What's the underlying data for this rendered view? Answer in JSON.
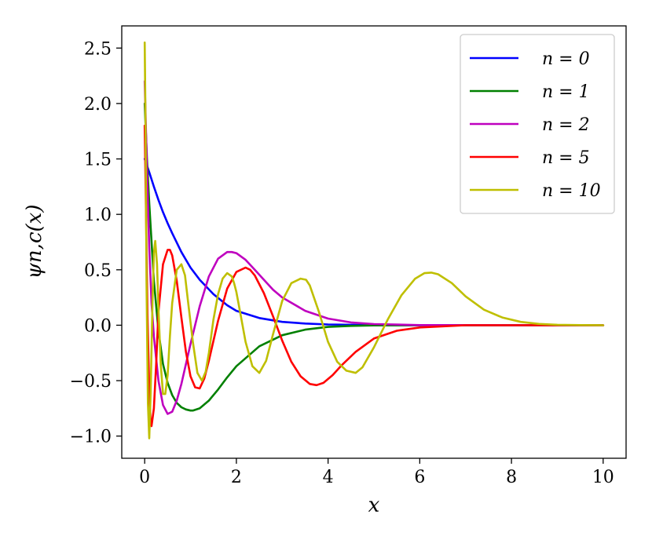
{
  "chart_data": {
    "type": "line",
    "xlabel": "x",
    "ylabel": "ψn,c(x)",
    "xlim": [
      -0.5,
      10.5
    ],
    "ylim": [
      -1.2,
      2.7
    ],
    "xticks": [
      0,
      2,
      4,
      6,
      8,
      10
    ],
    "xtick_labels": [
      "0",
      "2",
      "4",
      "6",
      "8",
      "10"
    ],
    "yticks": [
      -1.0,
      -0.5,
      0.0,
      0.5,
      1.0,
      1.5,
      2.0,
      2.5
    ],
    "ytick_labels": [
      "−1.0",
      "−0.5",
      "0.0",
      "0.5",
      "1.0",
      "1.5",
      "2.0",
      "2.5"
    ],
    "grid": false,
    "legend_position": "top-right",
    "series": [
      {
        "name": "n = 0",
        "color": "#0000ff",
        "x": [
          0,
          0.1,
          0.2,
          0.3,
          0.4,
          0.5,
          0.6,
          0.8,
          1.0,
          1.2,
          1.5,
          1.8,
          2.0,
          2.5,
          3.0,
          3.5,
          4.0,
          5.0,
          6.0,
          8.0,
          10.0
        ],
        "y": [
          1.5,
          1.38,
          1.25,
          1.13,
          1.02,
          0.92,
          0.83,
          0.66,
          0.52,
          0.41,
          0.28,
          0.18,
          0.13,
          0.065,
          0.03,
          0.015,
          0.007,
          0.001,
          0.0,
          0.0,
          0.0
        ]
      },
      {
        "name": "n = 1",
        "color": "#008000",
        "x": [
          0,
          0.05,
          0.1,
          0.2,
          0.3,
          0.4,
          0.5,
          0.6,
          0.7,
          0.8,
          0.9,
          1.0,
          1.05,
          1.2,
          1.4,
          1.6,
          1.8,
          2.0,
          2.5,
          3.0,
          3.5,
          4.0,
          4.5,
          5.0,
          6.0,
          8.0,
          10.0
        ],
        "y": [
          2.0,
          1.5,
          1.1,
          0.4,
          -0.05,
          -0.35,
          -0.52,
          -0.63,
          -0.7,
          -0.74,
          -0.76,
          -0.77,
          -0.77,
          -0.75,
          -0.68,
          -0.58,
          -0.47,
          -0.37,
          -0.19,
          -0.09,
          -0.04,
          -0.015,
          -0.006,
          -0.002,
          0.0,
          0.0,
          0.0
        ]
      },
      {
        "name": "n = 2",
        "color": "#bf00bf",
        "x": [
          0,
          0.05,
          0.1,
          0.15,
          0.2,
          0.3,
          0.4,
          0.5,
          0.6,
          0.7,
          0.8,
          1.0,
          1.2,
          1.4,
          1.6,
          1.8,
          1.9,
          2.0,
          2.2,
          2.4,
          2.6,
          2.8,
          3.0,
          3.5,
          4.0,
          4.5,
          5.0,
          6.0,
          8.0,
          10.0
        ],
        "y": [
          2.2,
          1.4,
          0.7,
          0.2,
          -0.1,
          -0.5,
          -0.72,
          -0.8,
          -0.78,
          -0.68,
          -0.53,
          -0.17,
          0.17,
          0.44,
          0.6,
          0.66,
          0.66,
          0.65,
          0.59,
          0.5,
          0.41,
          0.32,
          0.25,
          0.13,
          0.06,
          0.025,
          0.01,
          0.001,
          0.0,
          0.0
        ]
      },
      {
        "name": "n = 5",
        "color": "#ff0000",
        "x": [
          0,
          0.03,
          0.06,
          0.1,
          0.13,
          0.15,
          0.2,
          0.25,
          0.3,
          0.4,
          0.5,
          0.55,
          0.6,
          0.7,
          0.8,
          0.9,
          1.0,
          1.1,
          1.2,
          1.3,
          1.4,
          1.6,
          1.8,
          2.0,
          2.2,
          2.3,
          2.4,
          2.6,
          2.8,
          3.0,
          3.2,
          3.4,
          3.6,
          3.75,
          3.9,
          4.1,
          4.3,
          4.6,
          5.0,
          5.5,
          6.0,
          7.0,
          8.0,
          10.0
        ],
        "y": [
          1.8,
          1.0,
          0.1,
          -0.6,
          -0.88,
          -0.91,
          -0.75,
          -0.35,
          0.12,
          0.55,
          0.68,
          0.68,
          0.63,
          0.4,
          0.07,
          -0.24,
          -0.46,
          -0.56,
          -0.57,
          -0.48,
          -0.32,
          0.04,
          0.33,
          0.48,
          0.52,
          0.5,
          0.45,
          0.29,
          0.08,
          -0.14,
          -0.33,
          -0.46,
          -0.53,
          -0.54,
          -0.52,
          -0.45,
          -0.36,
          -0.24,
          -0.12,
          -0.05,
          -0.02,
          0.0,
          0.0,
          0.0
        ]
      },
      {
        "name": "n = 10",
        "color": "#bfbf00",
        "x": [
          0,
          0.02,
          0.04,
          0.07,
          0.1,
          0.13,
          0.17,
          0.2,
          0.23,
          0.27,
          0.3,
          0.35,
          0.4,
          0.45,
          0.5,
          0.55,
          0.6,
          0.7,
          0.8,
          0.88,
          0.95,
          1.05,
          1.15,
          1.25,
          1.33,
          1.4,
          1.5,
          1.6,
          1.7,
          1.8,
          1.9,
          1.95,
          2.0,
          2.1,
          2.2,
          2.35,
          2.5,
          2.65,
          2.8,
          3.0,
          3.2,
          3.4,
          3.52,
          3.6,
          3.8,
          4.0,
          4.2,
          4.4,
          4.6,
          4.75,
          5.0,
          5.3,
          5.6,
          5.9,
          6.1,
          6.25,
          6.4,
          6.7,
          7.0,
          7.4,
          7.8,
          8.2,
          8.6,
          9.0,
          9.5,
          10.0
        ],
        "y": [
          2.55,
          1.8,
          0.4,
          -0.7,
          -1.02,
          -0.6,
          0.2,
          0.65,
          0.76,
          0.55,
          0.15,
          -0.35,
          -0.62,
          -0.62,
          -0.45,
          -0.1,
          0.2,
          0.5,
          0.55,
          0.45,
          0.2,
          -0.15,
          -0.43,
          -0.5,
          -0.42,
          -0.25,
          0.05,
          0.28,
          0.42,
          0.47,
          0.44,
          0.38,
          0.3,
          0.08,
          -0.15,
          -0.37,
          -0.43,
          -0.32,
          -0.08,
          0.22,
          0.38,
          0.42,
          0.41,
          0.36,
          0.12,
          -0.15,
          -0.33,
          -0.41,
          -0.43,
          -0.38,
          -0.2,
          0.05,
          0.27,
          0.42,
          0.47,
          0.475,
          0.46,
          0.38,
          0.26,
          0.14,
          0.07,
          0.03,
          0.012,
          0.004,
          0.001,
          0.0
        ]
      }
    ]
  }
}
